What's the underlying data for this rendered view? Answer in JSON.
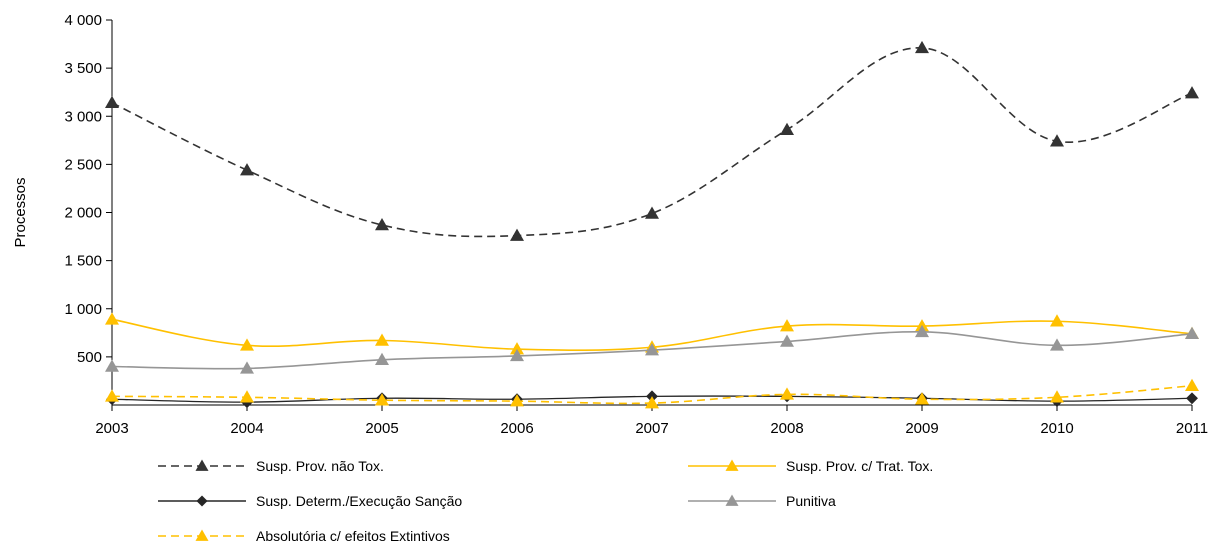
{
  "chart_data": {
    "type": "line",
    "title": "",
    "xlabel": "",
    "ylabel": "Processos",
    "ylim": [
      0,
      4000
    ],
    "yticks": [
      500,
      1000,
      1500,
      2000,
      2500,
      3000,
      3500,
      4000
    ],
    "ytick_labels": [
      "500",
      "1 000",
      "1 500",
      "2 000",
      "2 500",
      "3 000",
      "3 500",
      "4 000"
    ],
    "grid": false,
    "legend_position": "bottom",
    "categories": [
      "2003",
      "2004",
      "2005",
      "2006",
      "2007",
      "2008",
      "2009",
      "2010",
      "2011"
    ],
    "series": [
      {
        "name": "Susp. Prov. não Tox.",
        "color": "#333333",
        "dash": "dashed",
        "marker": "triangle",
        "values": [
          3140,
          2440,
          1870,
          1760,
          1990,
          2860,
          3710,
          2740,
          3240
        ]
      },
      {
        "name": "Susp. Prov. c/ Trat. Tox.",
        "color": "#FFC000",
        "dash": "solid",
        "marker": "triangle",
        "values": [
          890,
          620,
          670,
          580,
          600,
          820,
          820,
          870,
          740
        ]
      },
      {
        "name": "Susp. Determ./Execução Sanção",
        "color": "#262626",
        "dash": "solid",
        "marker": "diamond",
        "values": [
          60,
          30,
          70,
          60,
          90,
          90,
          70,
          40,
          70
        ]
      },
      {
        "name": "Punitiva",
        "color": "#969696",
        "dash": "solid",
        "marker": "triangle",
        "values": [
          400,
          380,
          470,
          510,
          570,
          660,
          760,
          620,
          740
        ]
      },
      {
        "name": "Absolutória c/ efeitos Extintivos",
        "color": "#FFC000",
        "dash": "dashed",
        "marker": "triangle",
        "values": [
          90,
          80,
          50,
          40,
          20,
          110,
          60,
          80,
          200
        ]
      }
    ]
  }
}
